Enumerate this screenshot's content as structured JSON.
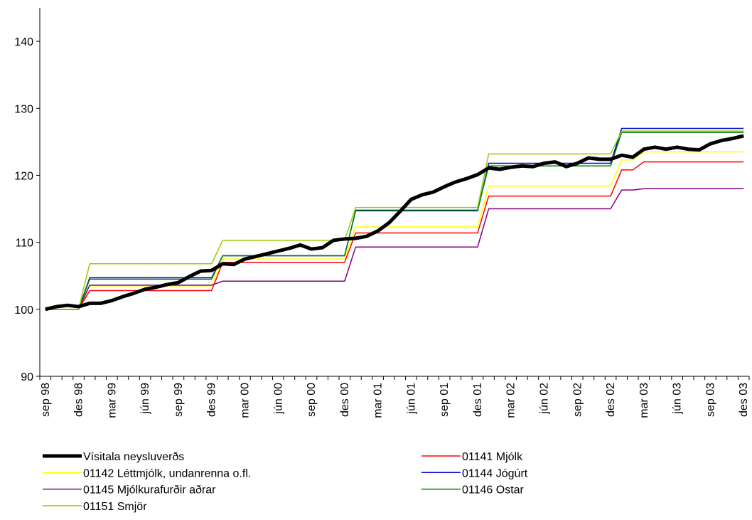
{
  "chart_data": {
    "type": "line",
    "categories": [
      "sep 98",
      null,
      null,
      "des 98",
      null,
      null,
      "mar 99",
      null,
      null,
      "jún 99",
      null,
      null,
      "sep 99",
      null,
      null,
      "des 99",
      null,
      null,
      "mar 00",
      null,
      null,
      "jún 00",
      null,
      null,
      "sep 00",
      null,
      null,
      "des 00",
      null,
      null,
      "mar 01",
      null,
      null,
      "jún 01",
      null,
      null,
      "sep 01",
      null,
      null,
      "des 01",
      null,
      null,
      "mar 02",
      null,
      null,
      "jún 02",
      null,
      null,
      "sep 02",
      null,
      null,
      "des 02",
      null,
      null,
      "mar 03",
      null,
      null,
      "jún 03",
      null,
      null,
      "sep 03",
      null,
      null,
      "des 03"
    ],
    "ylim": [
      90,
      145
    ],
    "yticks": [
      90,
      100,
      110,
      120,
      130,
      140
    ],
    "grid": false,
    "legend": "bottom",
    "series": [
      {
        "name": "Vísitala neysluverðs",
        "color": "#000000",
        "values": [
          100,
          100.4,
          100.6,
          100.4,
          100.9,
          100.9,
          101.3,
          101.9,
          102.4,
          103.0,
          103.3,
          103.7,
          104.0,
          104.9,
          105.7,
          105.8,
          106.8,
          106.7,
          107.5,
          107.9,
          108.3,
          108.7,
          109.1,
          109.6,
          109.0,
          109.2,
          110.3,
          110.5,
          110.6,
          110.9,
          111.7,
          112.9,
          114.6,
          116.4,
          117.1,
          117.5,
          118.3,
          119.0,
          119.5,
          120.1,
          121.1,
          120.9,
          121.2,
          121.4,
          121.3,
          121.8,
          122.0,
          121.3,
          121.8,
          122.6,
          122.4,
          122.4,
          123.0,
          122.7,
          123.9,
          124.2,
          123.9,
          124.2,
          123.9,
          123.8,
          124.7,
          125.2,
          125.5,
          125.9
        ]
      },
      {
        "name": "01141 Mjólk",
        "color": "#ff0000",
        "values": [
          100,
          100,
          100,
          100,
          102.8,
          102.8,
          102.8,
          102.8,
          102.8,
          102.8,
          102.8,
          102.8,
          102.8,
          102.8,
          102.8,
          102.8,
          107.0,
          107.0,
          107.0,
          107.0,
          107.0,
          107.0,
          107.0,
          107.0,
          107.0,
          107.0,
          107.0,
          107.0,
          111.4,
          111.4,
          111.4,
          111.4,
          111.4,
          111.4,
          111.4,
          111.4,
          111.4,
          111.4,
          111.4,
          111.4,
          116.9,
          116.9,
          116.9,
          116.9,
          116.9,
          116.9,
          116.9,
          116.9,
          116.9,
          116.9,
          116.9,
          116.9,
          120.8,
          120.8,
          122.0,
          122.0,
          122.0,
          122.0,
          122.0,
          122.0,
          122.0,
          122.0,
          122.0,
          122.0
        ]
      },
      {
        "name": "01142 Léttmjólk, undanrenna o.fl.",
        "color": "#ffff00",
        "values": [
          100,
          100,
          100,
          100,
          103.5,
          103.5,
          103.5,
          103.5,
          103.5,
          103.5,
          103.5,
          103.5,
          103.5,
          103.5,
          103.5,
          103.5,
          107.5,
          107.5,
          107.5,
          107.5,
          107.5,
          107.5,
          107.5,
          107.5,
          107.5,
          107.5,
          107.5,
          107.5,
          112.3,
          112.3,
          112.3,
          112.3,
          112.3,
          112.3,
          112.3,
          112.3,
          112.3,
          112.3,
          112.3,
          112.3,
          118.4,
          118.4,
          118.4,
          118.4,
          118.4,
          118.4,
          118.4,
          118.4,
          118.4,
          118.4,
          118.4,
          118.4,
          122.3,
          122.3,
          123.5,
          123.5,
          123.5,
          123.5,
          123.5,
          123.5,
          123.5,
          123.5,
          123.5,
          123.5
        ]
      },
      {
        "name": "01144 Jógúrt",
        "color": "#0000cc",
        "values": [
          100,
          100,
          100,
          100,
          104.7,
          104.7,
          104.7,
          104.7,
          104.7,
          104.7,
          104.7,
          104.7,
          104.7,
          104.7,
          104.7,
          104.7,
          108.0,
          108.0,
          108.0,
          108.0,
          108.0,
          108.0,
          108.0,
          108.0,
          108.0,
          108.0,
          108.0,
          108.0,
          114.7,
          114.7,
          114.7,
          114.7,
          114.7,
          114.7,
          114.7,
          114.7,
          114.7,
          114.7,
          114.7,
          114.7,
          121.8,
          121.8,
          121.8,
          121.8,
          121.8,
          121.8,
          121.8,
          121.8,
          121.8,
          121.8,
          121.8,
          121.8,
          127.0,
          127.0,
          127.0,
          127.0,
          127.0,
          127.0,
          127.0,
          127.0,
          127.0,
          127.0,
          127.0,
          127.0
        ]
      },
      {
        "name": "01145 Mjólkurafurðir aðrar",
        "color": "#800080",
        "values": [
          100,
          100,
          100,
          100,
          103.6,
          103.6,
          103.6,
          103.6,
          103.6,
          103.6,
          103.6,
          103.6,
          103.6,
          103.6,
          103.6,
          103.6,
          104.2,
          104.2,
          104.2,
          104.2,
          104.2,
          104.2,
          104.2,
          104.2,
          104.2,
          104.2,
          104.2,
          104.2,
          109.3,
          109.3,
          109.3,
          109.3,
          109.3,
          109.3,
          109.3,
          109.3,
          109.3,
          109.3,
          109.3,
          109.3,
          115.0,
          115.0,
          115.0,
          115.0,
          115.0,
          115.0,
          115.0,
          115.0,
          115.0,
          115.0,
          115.0,
          115.0,
          117.8,
          117.8,
          118.0,
          118.0,
          118.0,
          118.0,
          118.0,
          118.0,
          118.0,
          118.0,
          118.0,
          118.0
        ]
      },
      {
        "name": "01146 Ostar",
        "color": "#008000",
        "values": [
          100,
          100,
          100,
          100,
          104.5,
          104.5,
          104.5,
          104.5,
          104.5,
          104.5,
          104.5,
          104.5,
          104.5,
          104.5,
          104.5,
          104.5,
          108.0,
          108.0,
          108.0,
          108.0,
          108.0,
          108.0,
          108.0,
          108.0,
          108.0,
          108.0,
          108.0,
          108.0,
          114.8,
          114.8,
          114.8,
          114.8,
          114.8,
          114.8,
          114.8,
          114.8,
          114.8,
          114.8,
          114.8,
          114.8,
          121.4,
          121.4,
          121.4,
          121.4,
          121.4,
          121.4,
          121.4,
          121.4,
          121.4,
          121.4,
          121.4,
          121.4,
          126.4,
          126.4,
          126.4,
          126.4,
          126.4,
          126.4,
          126.4,
          126.4,
          126.4,
          126.4,
          126.4,
          126.4
        ]
      },
      {
        "name": "01151 Smjör",
        "color": "#99cc00",
        "values": [
          100,
          100,
          100,
          100,
          106.8,
          106.8,
          106.8,
          106.8,
          106.8,
          106.8,
          106.8,
          106.8,
          106.8,
          106.8,
          106.8,
          106.8,
          110.3,
          110.3,
          110.3,
          110.3,
          110.3,
          110.3,
          110.3,
          110.3,
          110.3,
          110.3,
          110.3,
          110.3,
          115.2,
          115.2,
          115.2,
          115.2,
          115.2,
          115.2,
          115.2,
          115.2,
          115.2,
          115.2,
          115.2,
          115.2,
          123.2,
          123.2,
          123.2,
          123.2,
          123.2,
          123.2,
          123.2,
          123.2,
          123.2,
          123.2,
          123.2,
          123.2,
          126.6,
          126.6,
          126.6,
          126.6,
          126.6,
          126.6,
          126.6,
          126.6,
          126.6,
          126.6,
          126.6,
          126.6
        ]
      }
    ]
  }
}
